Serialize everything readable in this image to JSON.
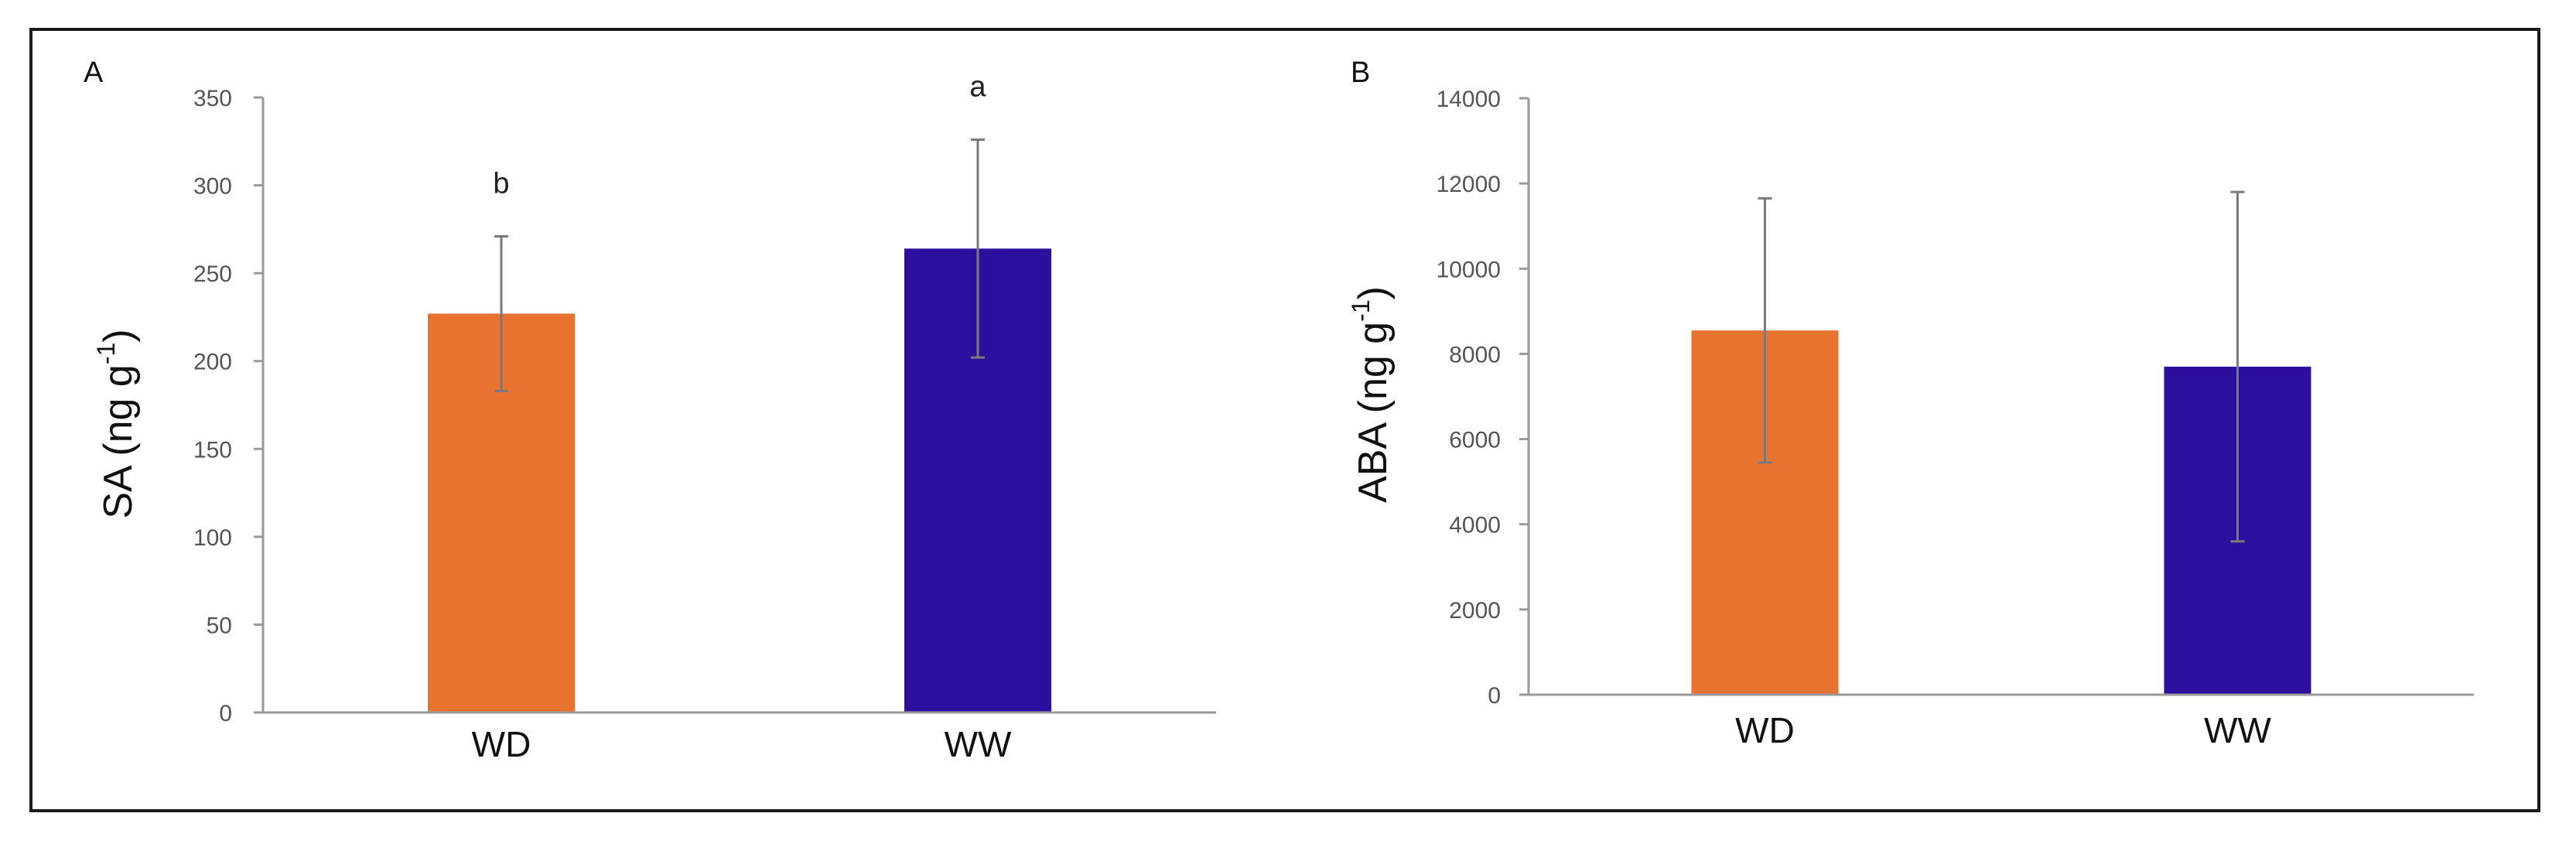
{
  "colors": {
    "WD": "#E8722F",
    "WW": "#2C0F9C",
    "axis": "#9a9a9a",
    "error": "#7a7a7a"
  },
  "chart_data": [
    {
      "type": "bar",
      "panel_label": "A",
      "ylabel": {
        "main": "SA (ng  g",
        "sup": "-1",
        "tail": ")"
      },
      "categories": [
        "WD",
        "WW"
      ],
      "values": [
        227,
        264
      ],
      "errors": [
        44,
        62
      ],
      "significance": [
        "b",
        "a"
      ],
      "ylim": [
        0,
        350
      ],
      "yticks": [
        0,
        50,
        100,
        150,
        200,
        250,
        300,
        350
      ],
      "grid": false
    },
    {
      "type": "bar",
      "panel_label": "B",
      "ylabel": {
        "main": "ABA (ng  g",
        "sup": "-1",
        "tail": ")"
      },
      "categories": [
        "WD",
        "WW"
      ],
      "values": [
        8550,
        7700
      ],
      "errors": [
        3100,
        4100
      ],
      "significance": [],
      "ylim": [
        0,
        14000
      ],
      "yticks": [
        0,
        2000,
        4000,
        6000,
        8000,
        10000,
        12000,
        14000
      ],
      "grid": false
    }
  ]
}
